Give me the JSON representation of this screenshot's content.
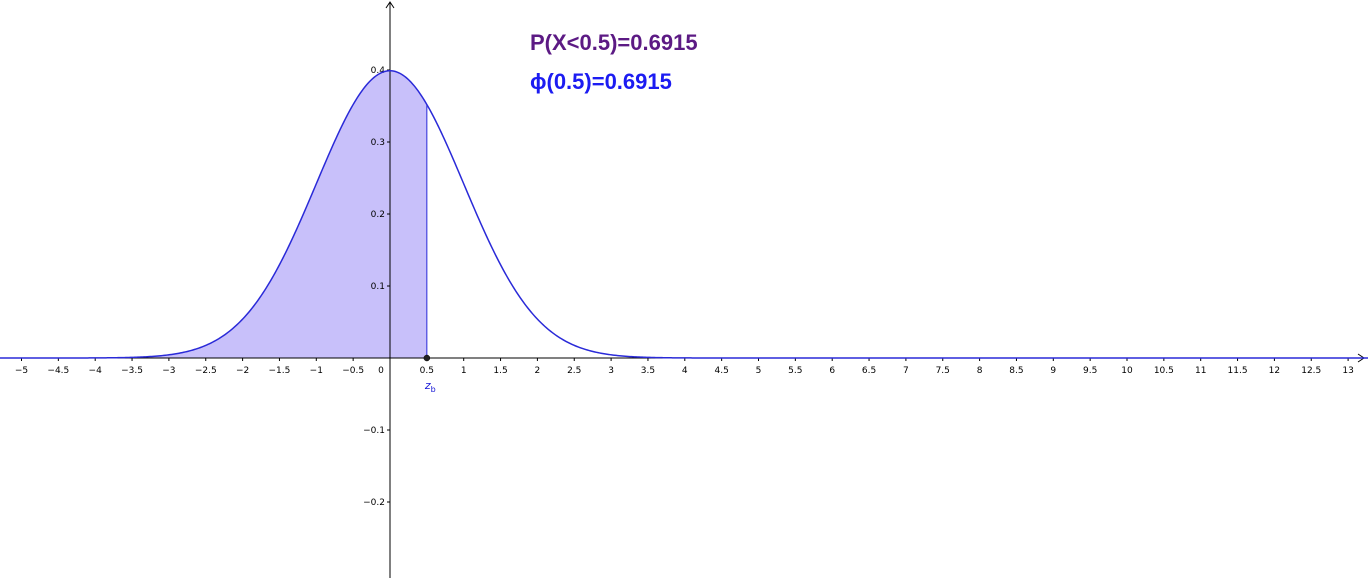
{
  "chart_data": {
    "type": "area",
    "title": "",
    "xlabel": "",
    "ylabel": "",
    "xlim": [
      -5.3,
      13.3
    ],
    "ylim": [
      -0.3,
      0.49
    ],
    "grid": false,
    "function": "standard normal density",
    "mean": 0,
    "sd": 1,
    "shade_from": -5.3,
    "shade_to": 0.5,
    "x_ticks": [
      -5,
      -4.5,
      -4,
      -3.5,
      -3,
      -2.5,
      -2,
      -1.5,
      -1,
      -0.5,
      0,
      0.5,
      1,
      1.5,
      2,
      2.5,
      3,
      3.5,
      4,
      4.5,
      5,
      5.5,
      6,
      6.5,
      7,
      7.5,
      8,
      8.5,
      9,
      9.5,
      10,
      10.5,
      11,
      11.5,
      12,
      12.5,
      13
    ],
    "x_tick_labels": [
      "−5",
      "−4.5",
      "−4",
      "−3.5",
      "−3",
      "−2.5",
      "−2",
      "−1.5",
      "−1",
      "−0.5",
      "0",
      "0.5",
      "1",
      "1.5",
      "2",
      "2.5",
      "3",
      "3.5",
      "4",
      "4.5",
      "5",
      "5.5",
      "6",
      "6.5",
      "7",
      "7.5",
      "8",
      "8.5",
      "9",
      "9.5",
      "10",
      "10.5",
      "11",
      "11.5",
      "12",
      "12.5",
      "13"
    ],
    "y_ticks": [
      0.4,
      0.3,
      0.2,
      0.1,
      -0.1,
      -0.2
    ],
    "y_tick_labels": [
      "0.4",
      "0.3",
      "0.2",
      "0.1",
      "−0.1",
      "−0.2"
    ],
    "point": {
      "x": 0.5,
      "y": 0,
      "label_main": "z",
      "label_sub": "b"
    },
    "annotations": {
      "probability": "P(X<0.5)=0.6915",
      "phi": "ϕ(0.5)=0.6915"
    },
    "colors": {
      "curve": "#2a2ad8",
      "shade_fill": "#c8c0fa",
      "probability_text": "#5c1a84",
      "phi_text": "#1c1cf2",
      "axis": "#000000"
    }
  }
}
